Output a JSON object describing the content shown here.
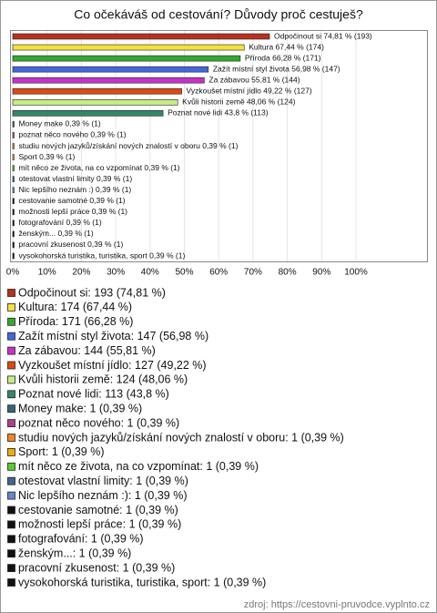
{
  "chart_data": {
    "type": "bar",
    "orientation": "horizontal",
    "title": "Co očekáváš od cestování? Důvody proč cestuješ?",
    "values": [
      74.81,
      67.44,
      66.28,
      56.98,
      55.81,
      49.22,
      48.06,
      43.8,
      0.39,
      0.39,
      0.39,
      0.39,
      0.39,
      0.39,
      0.39,
      0.39,
      0.39,
      0.39,
      0.39,
      0.39,
      0.39
    ],
    "value_labels": [
      "Odpočinout si 74,81 % (193)",
      "Kultura 67,44 % (174)",
      "Příroda 66,28 % (171)",
      "Zažít místní styl života 56,98 % (147)",
      "Za zábavou 55,81 % (144)",
      "Vyzkoušet místní jídlo 49,22 % (127)",
      "Kvůli historii země 48,06 % (124)",
      "Poznat nové lidi 43,8 % (113)",
      "Money make 0,39 % (1)",
      "poznat něco nového 0,39 % (1)",
      "studiu nových jazyků/získání nových znalostí v oboru 0,39 % (1)",
      "Sport 0,39 % (1)",
      "mít něco ze života, na co vzpomínat 0,39 % (1)",
      "otestovat vlastní limity 0,39 % (1)",
      "Nic lepšího neznám :) 0,39 % (1)",
      "cestovanie samotné 0,39 % (1)",
      "možnosti lepší práce 0,39 % (1)",
      "fotografování 0,39 % (1)",
      "ženským... 0,39 % (1)",
      "pracovní zkusenost 0,39 % (1)",
      "vysokohorská turistika, turistika, sport 0,39 % (1)"
    ],
    "legend_labels": [
      "Odpočinout si: 193 (74,81 %)",
      "Kultura: 174 (67,44 %)",
      "Příroda: 171 (66,28 %)",
      "Zažít místní styl života: 147 (56,98 %)",
      "Za zábavou: 144 (55,81 %)",
      "Vyzkoušet místní jídlo: 127 (49,22 %)",
      "Kvůli historii země: 124 (48,06 %)",
      "Poznat nové lidi: 113 (43,8 %)",
      "Money make: 1 (0,39 %)",
      "poznat něco nového: 1 (0,39 %)",
      "studiu nových jazyků/získání nových znalostí v oboru: 1 (0,39 %)",
      "Sport: 1 (0,39 %)",
      "mít něco ze života, na co vzpomínat: 1 (0,39 %)",
      "otestovat vlastní limity: 1 (0,39 %)",
      "Nic lepšího neznám :): 1 (0,39 %)",
      "cestovanie samotné: 1 (0,39 %)",
      "možnosti lepší práce: 1 (0,39 %)",
      "fotografování: 1 (0,39 %)",
      "ženským...: 1 (0,39 %)",
      "pracovní zkusenost: 1 (0,39 %)",
      "vysokohorská turistika, turistika, sport: 1 (0,39 %)"
    ],
    "colors": [
      "#b8301e",
      "#f2e23c",
      "#36a832",
      "#4466dd",
      "#c633c6",
      "#dd4a14",
      "#c6ec86",
      "#338866",
      "#336677",
      "#aa4488",
      "#ee8822",
      "#eeaa11",
      "#55cc33",
      "#446688",
      "#6688cc",
      "#111111",
      "#111111",
      "#111111",
      "#111111",
      "#111111",
      "#111111"
    ],
    "xlim": [
      0,
      120
    ],
    "xticks": [
      {
        "value": 0,
        "label": "0%"
      },
      {
        "value": 10,
        "label": "10%"
      },
      {
        "value": 20,
        "label": "20%"
      },
      {
        "value": 30,
        "label": "30%"
      },
      {
        "value": 40,
        "label": "40%"
      },
      {
        "value": 50,
        "label": "50%"
      },
      {
        "value": 60,
        "label": "60%"
      },
      {
        "value": 70,
        "label": "70%"
      },
      {
        "value": 80,
        "label": "80%"
      },
      {
        "value": 90,
        "label": "90%"
      },
      {
        "value": 100,
        "label": "100%"
      }
    ],
    "grid": true,
    "source": "zdroj: https://cestovni-pruvodce.vyplnto.cz"
  }
}
